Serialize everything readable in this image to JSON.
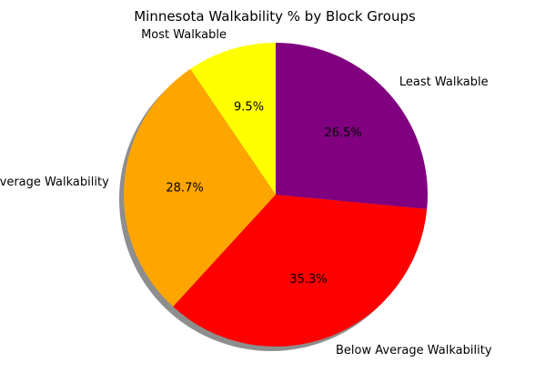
{
  "chart_data": {
    "type": "pie",
    "title": "Minnesota Walkability % by Block Groups",
    "start_angle_deg": 90,
    "direction": "counterclockwise",
    "shadow": true,
    "slices": [
      {
        "label": "Most Walkable",
        "value": 9.5,
        "pct_label": "9.5%",
        "color": "#ffff00"
      },
      {
        "label": "Above Average Walkability",
        "value": 28.7,
        "pct_label": "28.7%",
        "color": "#ffa500"
      },
      {
        "label": "Below Average Walkability",
        "value": 35.3,
        "pct_label": "35.3%",
        "color": "#ff0000"
      },
      {
        "label": "Least Walkable",
        "value": 26.5,
        "pct_label": "26.5%",
        "color": "#800080"
      }
    ]
  }
}
